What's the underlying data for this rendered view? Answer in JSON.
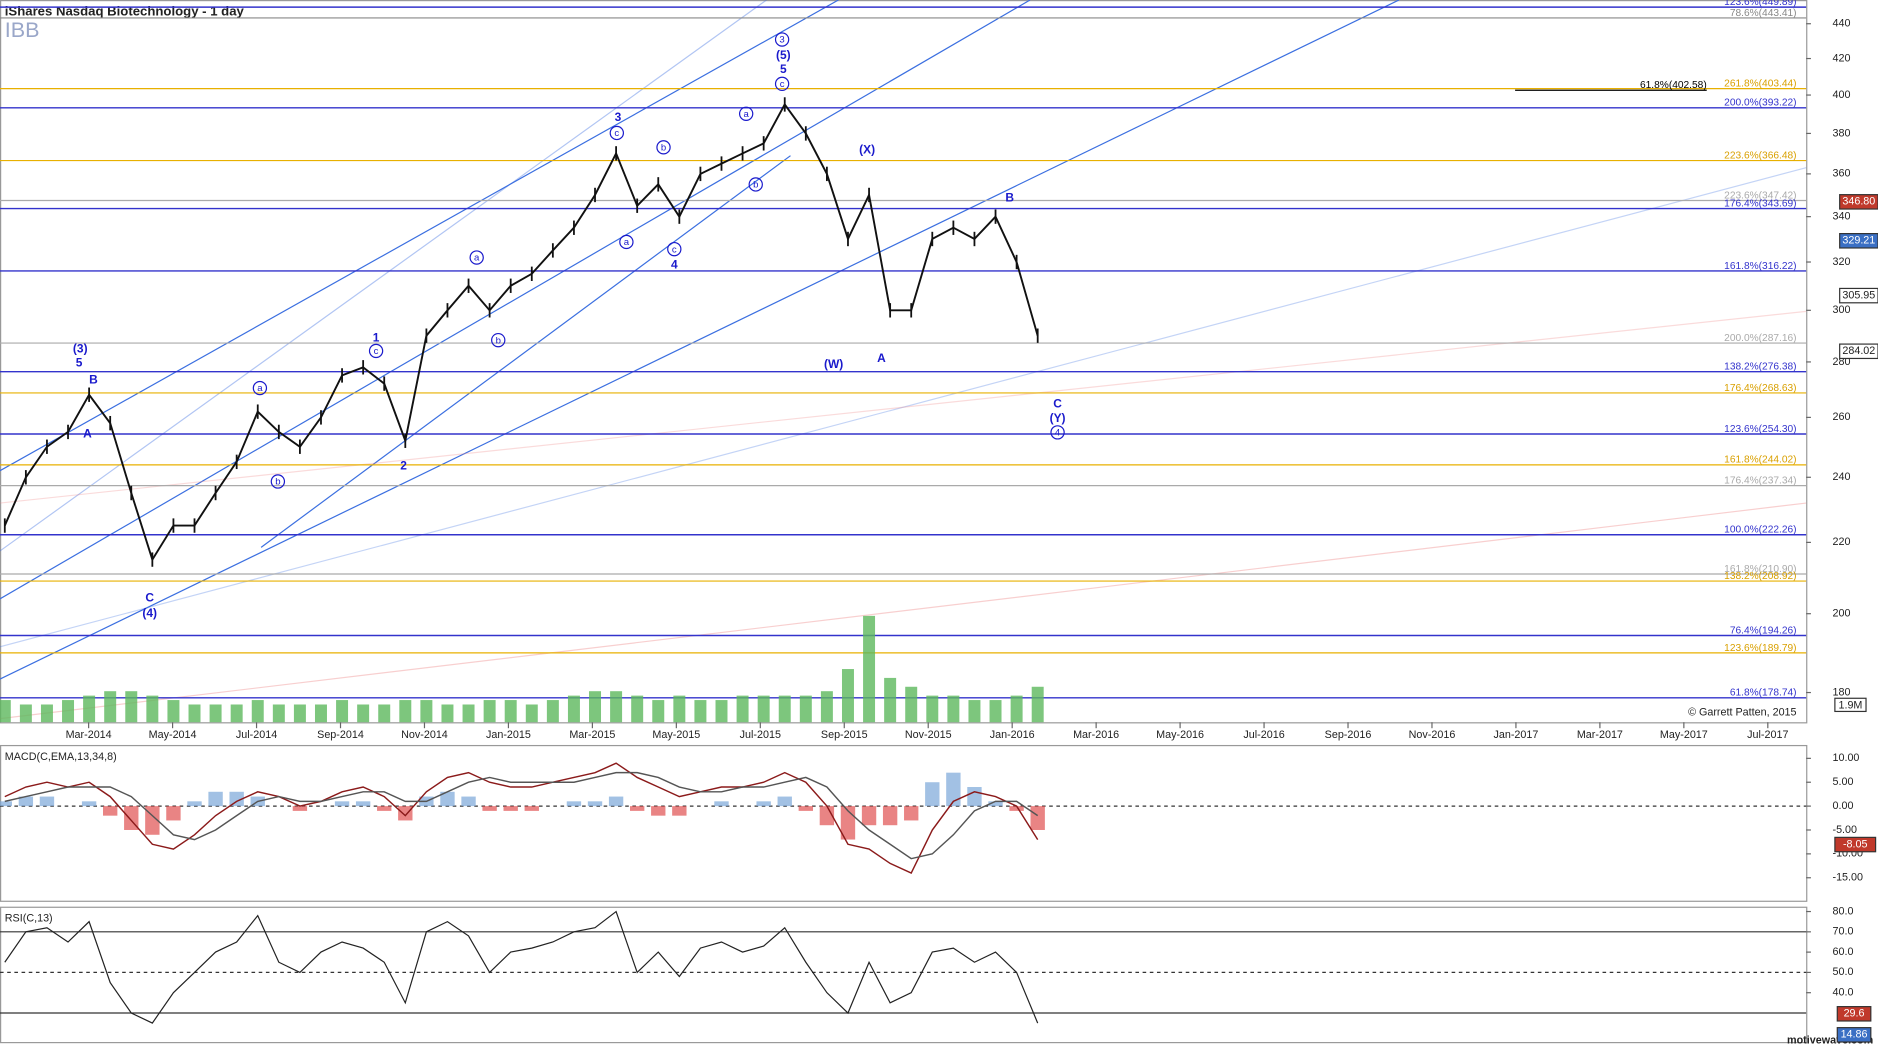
{
  "chart_data": [
    {
      "type": "line",
      "title": "iShares Nasdaq Biotechnology - 1 day",
      "symbol": "IBB",
      "copyright": "© Garrett Patten, 2015",
      "footer": "motivewave.com",
      "log_scale": true,
      "ylim": [
        173,
        452
      ],
      "yticks": [
        180,
        200,
        220,
        240,
        260,
        280,
        300,
        320,
        340,
        360,
        380,
        400,
        420,
        440
      ],
      "xticks": [
        "Mar-2014",
        "May-2014",
        "Jul-2014",
        "Sep-2014",
        "Nov-2014",
        "Jan-2015",
        "Mar-2015",
        "May-2015",
        "Jul-2015",
        "Sep-2015",
        "Nov-2015",
        "Jan-2016",
        "Mar-2016",
        "May-2016",
        "Jul-2016",
        "Sep-2016",
        "Nov-2016",
        "Jan-2017",
        "Mar-2017",
        "May-2017",
        "Jul-2017"
      ],
      "color": "#111111",
      "values": [
        225,
        240,
        250,
        255,
        268,
        258,
        235,
        215,
        225,
        225,
        235,
        245,
        262,
        255,
        250,
        260,
        275,
        278,
        272,
        252,
        290,
        300,
        310,
        300,
        310,
        315,
        325,
        335,
        350,
        370,
        345,
        355,
        340,
        360,
        365,
        370,
        375,
        395,
        380,
        360,
        330,
        350,
        300,
        300,
        330,
        335,
        330,
        340,
        320,
        290
      ],
      "volume": {
        "label": "1.9M",
        "value": 1.9,
        "color": "#5cb85c",
        "values": [
          2.5,
          2,
          2,
          2.5,
          3,
          3.5,
          3.5,
          3,
          2.5,
          2,
          2,
          2,
          2.5,
          2,
          2,
          2,
          2.5,
          2,
          2,
          2.5,
          2.5,
          2,
          2,
          2.5,
          2.5,
          2,
          2.5,
          3,
          3.5,
          3.5,
          3,
          2.5,
          3,
          2.5,
          2.5,
          3,
          3,
          3,
          3,
          3.5,
          6,
          12,
          5,
          4,
          3,
          3,
          2.5,
          2.5,
          3,
          4
        ]
      },
      "levels": [
        {
          "value": 449.89,
          "label": "123.6%(449.89)",
          "color": "#3333cc"
        },
        {
          "value": 443.41,
          "label": "78.6%(443.41)",
          "color": "#888888"
        },
        {
          "value": 403.44,
          "label": "261.8%(403.44)",
          "color": "#e8b000"
        },
        {
          "value": 402.58,
          "label": "61.8%(402.58)",
          "color": "#000000"
        },
        {
          "value": 393.22,
          "label": "200.0%(393.22)",
          "color": "#3333cc"
        },
        {
          "value": 366.48,
          "label": "223.6%(366.48)",
          "color": "#e8b000"
        },
        {
          "value": 347.42,
          "label": "223.6%(347.42)",
          "color": "#aaaaaa"
        },
        {
          "value": 343.69,
          "label": "176.4%(343.69)",
          "color": "#3333cc"
        },
        {
          "value": 316.22,
          "label": "161.8%(316.22)",
          "color": "#3333cc"
        },
        {
          "value": 287.16,
          "label": "200.0%(287.16)",
          "color": "#aaaaaa"
        },
        {
          "value": 276.38,
          "label": "138.2%(276.38)",
          "color": "#3333cc"
        },
        {
          "value": 268.63,
          "label": "176.4%(268.63)",
          "color": "#e8b000"
        },
        {
          "value": 254.3,
          "label": "123.6%(254.30)",
          "color": "#3333cc"
        },
        {
          "value": 244.02,
          "label": "161.8%(244.02)",
          "color": "#e8b000"
        },
        {
          "value": 237.34,
          "label": "176.4%(237.34)",
          "color": "#aaaaaa"
        },
        {
          "value": 222.26,
          "label": "100.0%(222.26)",
          "color": "#3333cc"
        },
        {
          "value": 210.9,
          "label": "161.8%(210.90)",
          "color": "#aaaaaa"
        },
        {
          "value": 208.92,
          "label": "138.2%(208.92)",
          "color": "#e8b000"
        },
        {
          "value": 194.26,
          "label": "76.4%(194.26)",
          "color": "#3333cc"
        },
        {
          "value": 189.79,
          "label": "123.6%(189.79)",
          "color": "#e8b000"
        },
        {
          "value": 178.74,
          "label": "61.8%(178.74)",
          "color": "#3333cc"
        }
      ],
      "price_labels": [
        {
          "value": 346.8,
          "label": "346.80",
          "color": "#c0392b"
        },
        {
          "value": 329.21,
          "label": "329.21",
          "color": "#3a6fc4"
        },
        {
          "value": 305.95,
          "label": "305.95",
          "color": "#ffffff"
        },
        {
          "value": 284.02,
          "label": "284.02",
          "color": "#ffffff"
        }
      ],
      "wave_labels": [
        "(3)",
        "5",
        "B",
        "A",
        "C",
        "(4)",
        "a",
        "b",
        "1",
        "c",
        "2",
        "a",
        "b",
        "3",
        "c",
        "a",
        "b",
        "c",
        "4",
        "a",
        "b",
        "3",
        "(5)",
        "5",
        "c",
        "(X)",
        "(W)",
        "A",
        "B",
        "C",
        "(Y)",
        "4"
      ]
    },
    {
      "type": "line",
      "title": "MACD(C,EMA,13,34,8)",
      "ylim": [
        -19.8,
        12.8
      ],
      "yticks": [
        {
          "value": 10,
          "label": "10.00"
        },
        {
          "value": 5,
          "label": "5.00"
        },
        {
          "value": 0,
          "label": "0.00"
        },
        {
          "value": -5,
          "label": "-5.00"
        },
        {
          "value": -10,
          "label": "-10.00"
        },
        {
          "value": -15,
          "label": "-15.00"
        }
      ],
      "current": {
        "value": -8.05,
        "label": "-8.05"
      },
      "series": [
        {
          "name": "MACD",
          "color": "#8b1a1a",
          "values": [
            2,
            4,
            5,
            4,
            5,
            2,
            -3,
            -8,
            -9,
            -6,
            -2,
            1,
            3,
            2,
            0,
            1,
            3,
            4,
            2,
            -2,
            3,
            6,
            7,
            5,
            4,
            4,
            5,
            6,
            7,
            9,
            6,
            4,
            2,
            3,
            4,
            4,
            5,
            7,
            5,
            0,
            -8,
            -9,
            -12,
            -14,
            -5,
            1,
            3,
            2,
            0,
            -7
          ]
        },
        {
          "name": "Signal",
          "color": "#555555",
          "values": [
            1,
            2,
            3,
            4,
            4,
            4,
            2,
            -2,
            -6,
            -7,
            -5,
            -2,
            1,
            2,
            1,
            1,
            2,
            3,
            3,
            1,
            1,
            3,
            5,
            6,
            5,
            5,
            5,
            5,
            6,
            7,
            7,
            6,
            4,
            3,
            3,
            4,
            4,
            5,
            6,
            4,
            -1,
            -5,
            -8,
            -11,
            -10,
            -6,
            -1,
            1,
            1,
            -2
          ]
        }
      ],
      "histogram": [
        1,
        2,
        2,
        0,
        1,
        -2,
        -5,
        -6,
        -3,
        1,
        3,
        3,
        2,
        0,
        -1,
        0,
        1,
        1,
        -1,
        -3,
        2,
        3,
        2,
        -1,
        -1,
        -1,
        0,
        1,
        1,
        2,
        -1,
        -2,
        -2,
        0,
        1,
        0,
        1,
        2,
        -1,
        -4,
        -7,
        -4,
        -4,
        -3,
        5,
        7,
        4,
        1,
        -1,
        -5
      ]
    },
    {
      "type": "line",
      "title": "RSI(C,13)",
      "ylim": [
        15.7,
        82.4
      ],
      "yticks": [
        {
          "value": 80,
          "label": "80.0"
        },
        {
          "value": 70,
          "label": "70.0"
        },
        {
          "value": 60,
          "label": "60.0"
        },
        {
          "value": 50,
          "label": "50.0"
        },
        {
          "value": 40,
          "label": "40.0"
        }
      ],
      "levels": [
        70,
        50,
        30
      ],
      "markers": [
        {
          "value": 29.6,
          "label": "29.6"
        },
        {
          "value": 14.86,
          "label": "14.86"
        }
      ],
      "color": "#222222",
      "values": [
        55,
        70,
        72,
        65,
        75,
        45,
        30,
        25,
        40,
        50,
        60,
        65,
        78,
        55,
        50,
        60,
        65,
        62,
        55,
        35,
        70,
        75,
        68,
        50,
        60,
        62,
        65,
        70,
        72,
        80,
        50,
        60,
        48,
        62,
        65,
        60,
        63,
        72,
        55,
        40,
        30,
        55,
        35,
        40,
        60,
        62,
        55,
        60,
        50,
        25
      ]
    }
  ]
}
